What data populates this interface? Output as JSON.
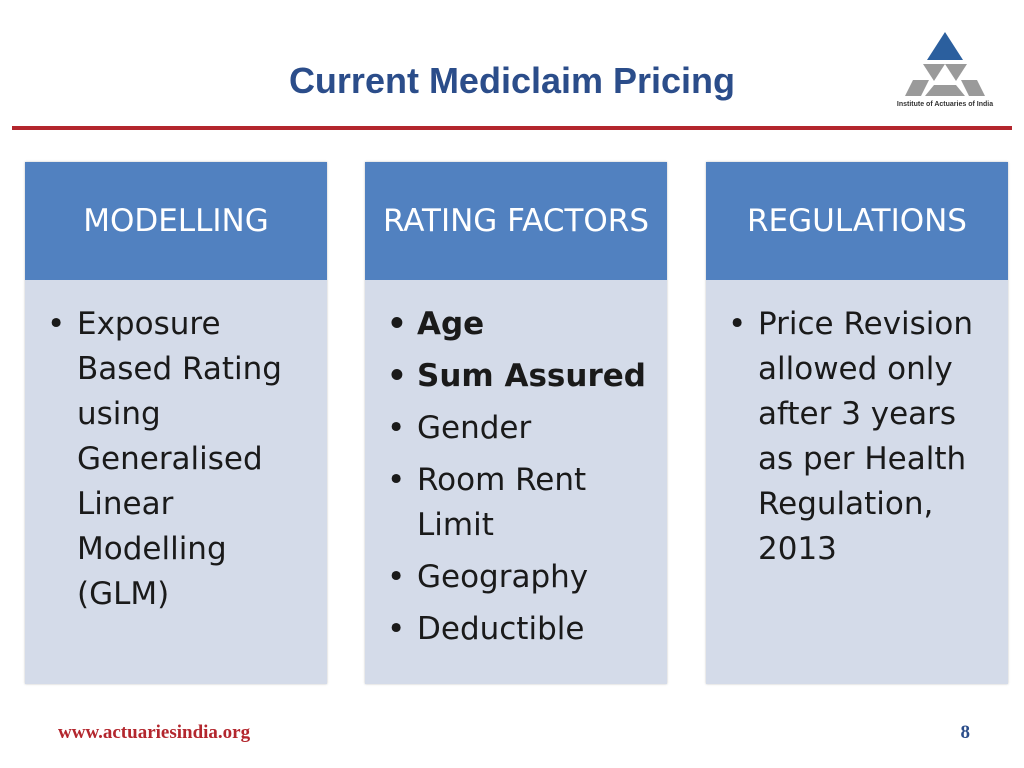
{
  "slide": {
    "title": "Current Mediclaim Pricing",
    "logo_text": "Institute of Actuaries of India",
    "columns": [
      {
        "heading": "MODELLING",
        "items": [
          "Exposure Based Rating using Generalised Linear Modelling (GLM)"
        ]
      },
      {
        "heading": "RATING FACTORS",
        "items": [
          "Age",
          "Sum Assured",
          "Gender",
          "Room Rent Limit",
          "Geography",
          "Deductible"
        ]
      },
      {
        "heading": "REGULATIONS",
        "items": [
          "Price Revision allowed only after 3 years as per Health Regulation, 2013"
        ]
      }
    ],
    "footer_url": "www.actuariesindia.org",
    "page_number": "8"
  },
  "colors": {
    "title": "#2b4d8a",
    "rule": "#b3262d",
    "header_bg": "#5181c0",
    "body_bg": "#d4dbe9",
    "logo": "#2b5f9e"
  },
  "icons": {
    "logo": "institute-of-actuaries-of-india-logo"
  }
}
